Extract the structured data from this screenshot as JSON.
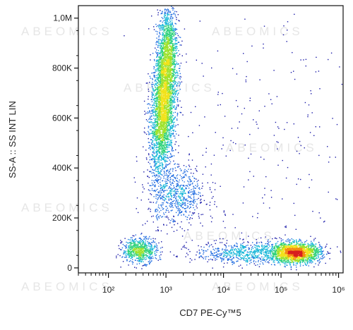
{
  "watermark": "ABEOMICS",
  "colors": {
    "axis": "#111111",
    "density_scale": [
      "#1a1aa8",
      "#1f6be0",
      "#19b7d8",
      "#2fd27a",
      "#9ee22a",
      "#f2e21a",
      "#f58a12",
      "#d81e1e"
    ]
  },
  "chart_data": {
    "type": "scatter",
    "title": "",
    "xlabel": "CD7 PE-Cy™5",
    "ylabel": "SS-A :: SS INT LIN",
    "x_scale": "log",
    "y_scale": "linear",
    "xlim": [
      30,
      1200000
    ],
    "ylim": [
      -20000,
      1050000
    ],
    "x_ticks": [
      {
        "value": 100,
        "label": "10²"
      },
      {
        "value": 1000,
        "label": "10³"
      },
      {
        "value": 10000,
        "label": "10⁴"
      },
      {
        "value": 100000,
        "label": "10⁵"
      },
      {
        "value": 1000000,
        "label": "10⁶"
      }
    ],
    "y_ticks": [
      {
        "value": 0,
        "label": "0"
      },
      {
        "value": 200000,
        "label": "200K"
      },
      {
        "value": 400000,
        "label": "400K"
      },
      {
        "value": 600000,
        "label": "600K"
      },
      {
        "value": 800000,
        "label": "800K"
      },
      {
        "value": 1000000,
        "label": "1,0M"
      }
    ],
    "grid": false,
    "legend": "none",
    "populations": [
      {
        "center_log10_x": 2.96,
        "center_y": 650000,
        "spread_log10_x": 0.11,
        "spread_y": 130000,
        "tilt": 0.35,
        "events": 3400
      },
      {
        "center_log10_x": 3.02,
        "center_y": 880000,
        "spread_log10_x": 0.08,
        "spread_y": 90000,
        "tilt": 0.2,
        "events": 900
      },
      {
        "center_log10_x": 3.2,
        "center_y": 290000,
        "spread_log10_x": 0.25,
        "spread_y": 60000,
        "tilt": 0.0,
        "events": 700
      },
      {
        "center_log10_x": 2.55,
        "center_y": 70000,
        "spread_log10_x": 0.15,
        "spread_y": 25000,
        "tilt": 0.0,
        "events": 700
      },
      {
        "center_log10_x": 5.25,
        "center_y": 60000,
        "spread_log10_x": 0.22,
        "spread_y": 20000,
        "tilt": 0.0,
        "events": 1900
      },
      {
        "center_log10_x": 4.4,
        "center_y": 60000,
        "spread_log10_x": 0.45,
        "spread_y": 22000,
        "tilt": 0.0,
        "events": 700
      },
      {
        "center_log10_x": 4.6,
        "center_y": 450000,
        "spread_log10_x": 0.9,
        "spread_y": 300000,
        "tilt": 0.0,
        "events": 250
      }
    ]
  }
}
